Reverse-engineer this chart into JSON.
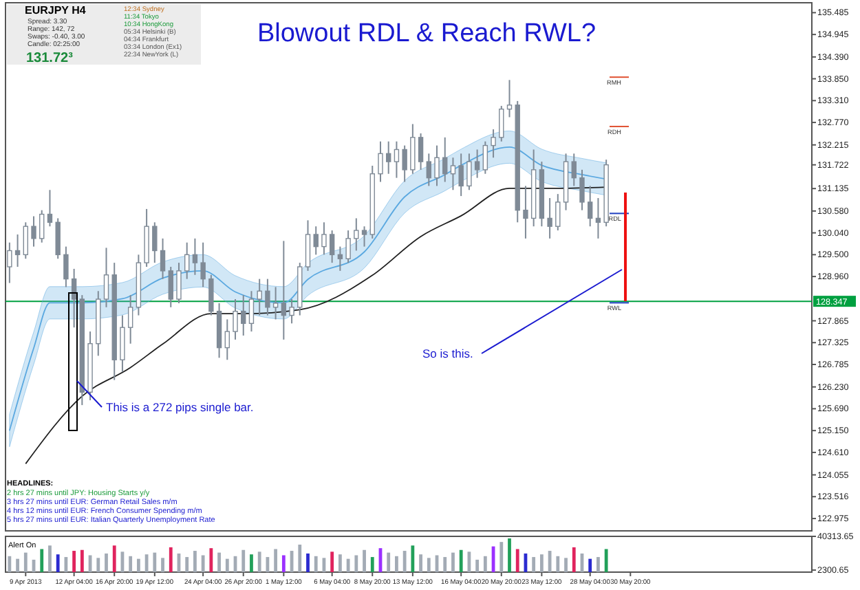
{
  "chart_data": [
    {
      "type": "candlestick",
      "title": "Blowout RDL & Reach RWL?",
      "categories": [
        null,
        null,
        null,
        null,
        null,
        null,
        null,
        null,
        null,
        null,
        null,
        null,
        null,
        null,
        null,
        null,
        null,
        null,
        null,
        null,
        null,
        null,
        null,
        null,
        null,
        null,
        null,
        null,
        null,
        null,
        null,
        null,
        null,
        null,
        null,
        null,
        null,
        null,
        null,
        null,
        null,
        null,
        null,
        null,
        null,
        null,
        null,
        null,
        null,
        null,
        null,
        null,
        null,
        null,
        null,
        null,
        null,
        null,
        null,
        null,
        null,
        null,
        null,
        null,
        null,
        null,
        null,
        null,
        null,
        null,
        null,
        null,
        null,
        null,
        null,
        null,
        null,
        null,
        null,
        null,
        null,
        null,
        null,
        null,
        null,
        null,
        null,
        null,
        null,
        null,
        null,
        null,
        null,
        null,
        null,
        null,
        null,
        null,
        null,
        null
      ],
      "ylim": [
        122.67,
        135.73
      ],
      "tick_labels": "y",
      "yticks": [
        122.975,
        {
          "value": 123.516,
          "label": "123.516"
        },
        {
          "value": 124.055,
          "label": "124.055"
        },
        {
          "value": 124.61,
          "label": "124.610"
        },
        {
          "value": 125.15,
          "label": "125.150"
        },
        {
          "value": 125.69,
          "label": "125.690"
        },
        {
          "value": 126.23,
          "label": "126.230"
        },
        126.785,
        127.325,
        127.865,
        {
          "value": 128.96,
          "label": "128.960"
        },
        {
          "value": 129.5,
          "label": "129.500"
        },
        {
          "value": 130.04,
          "label": "130.040"
        },
        {
          "value": 130.58,
          "label": "130.580"
        },
        131.135,
        131.722,
        132.215,
        {
          "value": 132.77,
          "label": "132.770"
        },
        {
          "value": 133.31,
          "label": "133.310"
        },
        {
          "value": 133.85,
          "label": "133.850"
        },
        {
          "value": 134.39,
          "label": "134.390"
        },
        134.945,
        135.485
      ],
      "ref_lines": [
        {
          "axis": "y",
          "value": 128.347,
          "label": "128.347",
          "color": "#00a040"
        },
        {
          "axis": "y",
          "value": 133.89,
          "label": "RMH",
          "color": "#e05030"
        },
        {
          "axis": "y",
          "value": 132.67,
          "label": "RDH",
          "color": "#e05030"
        },
        {
          "axis": "y",
          "value": 130.52,
          "label": "RDL",
          "color": "#2040c0"
        },
        {
          "axis": "y",
          "value": 128.31,
          "label": "RWL",
          "color": "#2040c0"
        }
      ],
      "series": [
        {
          "type": "line",
          "color": "#5aa8e0",
          "values": [
            125.15,
            null,
            null,
            127.19,
            null,
            128.31,
            null,
            null,
            null,
            128.31,
            null,
            null,
            null,
            null,
            128.41,
            null,
            null,
            null,
            null,
            128.92,
            null,
            null,
            null,
            null,
            129.1,
            null,
            null,
            null,
            128.58,
            null,
            null,
            null,
            null,
            null,
            128.31,
            null,
            null,
            128.89,
            null,
            null,
            null,
            null,
            null,
            null,
            129.57,
            null,
            null,
            null,
            null,
            130.93,
            null,
            null,
            null,
            null,
            131.48,
            null,
            131.71,
            null,
            null,
            null,
            null,
            null,
            132.16,
            null,
            null,
            null,
            131.71,
            null,
            null,
            null,
            null,
            131.48,
            null,
            null,
            131.37,
            null,
            null,
            null,
            null,
            null,
            null,
            null,
            null,
            null,
            null,
            null,
            null,
            null,
            null,
            null,
            null,
            null,
            null,
            null,
            null,
            null,
            null,
            null,
            null,
            null
          ],
          "lower": [
            124.75,
            null,
            null,
            126.79,
            null,
            127.91,
            null,
            null,
            null,
            127.91,
            null,
            null,
            null,
            null,
            128.01,
            null,
            null,
            null,
            null,
            128.52,
            null,
            null,
            null,
            null,
            128.7,
            null,
            null,
            null,
            128.18,
            null,
            null,
            null,
            null,
            null,
            127.91,
            null,
            null,
            128.49,
            null,
            null,
            null,
            null,
            null,
            null,
            129.17,
            null,
            null,
            null,
            null,
            130.53,
            null,
            null,
            null,
            null,
            131.08,
            null,
            131.31,
            null,
            null,
            null,
            null,
            null,
            131.76,
            null,
            null,
            null,
            131.31,
            null,
            null,
            null,
            null,
            131.08,
            null,
            null,
            130.97,
            null,
            null,
            null,
            null,
            null,
            null,
            null,
            null,
            null,
            null,
            null,
            null,
            null,
            null,
            null,
            null,
            null,
            null,
            null,
            null,
            null,
            null,
            null,
            null,
            null
          ],
          "upper": [
            125.55,
            null,
            null,
            127.59,
            null,
            128.71,
            null,
            null,
            null,
            128.71,
            null,
            null,
            null,
            null,
            128.81,
            null,
            null,
            null,
            null,
            129.32,
            null,
            null,
            null,
            null,
            129.5,
            null,
            null,
            null,
            128.98,
            null,
            null,
            null,
            null,
            null,
            128.71,
            null,
            null,
            129.29,
            null,
            null,
            null,
            null,
            null,
            null,
            129.97,
            null,
            null,
            null,
            null,
            131.33,
            null,
            null,
            null,
            null,
            131.88,
            null,
            132.11,
            null,
            null,
            null,
            null,
            null,
            132.56,
            null,
            null,
            null,
            132.11,
            null,
            null,
            null,
            null,
            131.88,
            null,
            null,
            131.77,
            null,
            null,
            null,
            null,
            null,
            null,
            null,
            null,
            null,
            null,
            null,
            null,
            null,
            null,
            null,
            null,
            null,
            null,
            null,
            null,
            null,
            null,
            null,
            null,
            null
          ]
        },
        {
          "type": "line",
          "color": "#202020",
          "values": [
            null,
            null,
            124.33,
            null,
            null,
            null,
            null,
            null,
            null,
            126.0,
            null,
            null,
            null,
            null,
            null,
            126.71,
            null,
            null,
            null,
            127.29,
            null,
            null,
            null,
            null,
            null,
            128.04,
            null,
            null,
            null,
            128.04,
            null,
            null,
            null,
            null,
            null,
            null,
            128.14,
            null,
            null,
            null,
            null,
            null,
            null,
            null,
            null,
            128.99,
            null,
            null,
            null,
            null,
            null,
            129.95,
            null,
            null,
            null,
            null,
            130.46,
            null,
            null,
            null,
            null,
            null,
            131.14,
            null,
            null,
            null,
            null,
            null,
            131.14,
            null,
            null,
            null,
            null,
            null,
            131.17,
            null,
            null,
            null,
            null,
            null,
            null,
            null,
            null,
            null,
            null,
            null,
            null,
            null,
            null,
            null,
            null,
            null,
            null,
            null,
            null,
            null,
            null,
            null,
            null,
            null
          ]
        },
        {
          "color": "#7f8a96",
          "ohlc": [
            [
              129.2,
              129.8,
              128.8,
              129.6
            ],
            [
              129.6,
              130.0,
              129.2,
              129.5
            ],
            [
              129.5,
              130.3,
              129.4,
              130.2
            ],
            [
              130.2,
              130.45,
              129.7,
              129.9
            ],
            [
              129.9,
              130.6,
              129.8,
              130.5
            ],
            [
              130.5,
              131.1,
              130.2,
              130.3
            ],
            [
              130.3,
              130.4,
              129.4,
              129.5
            ],
            [
              129.5,
              129.7,
              128.7,
              128.9
            ],
            [
              128.9,
              129.15,
              127.7,
              128.4
            ],
            [
              128.4,
              128.5,
              125.78,
              126.1
            ],
            [
              126.1,
              127.6,
              125.9,
              127.3
            ],
            [
              127.3,
              128.6,
              127.0,
              128.4
            ],
            [
              128.4,
              129.67,
              128.2,
              129.0
            ],
            [
              129.0,
              129.3,
              126.4,
              126.9
            ],
            [
              126.9,
              128.0,
              126.6,
              127.7
            ],
            [
              127.7,
              128.5,
              127.3,
              128.2
            ],
            [
              128.2,
              129.5,
              128.0,
              129.3
            ],
            [
              129.3,
              130.63,
              129.2,
              130.2
            ],
            [
              130.2,
              130.3,
              129.3,
              129.6
            ],
            [
              129.6,
              129.9,
              128.9,
              129.1
            ],
            [
              129.1,
              129.2,
              128.2,
              128.4
            ],
            [
              128.4,
              129.3,
              128.3,
              129.1
            ],
            [
              129.1,
              129.8,
              128.9,
              129.5
            ],
            [
              129.5,
              129.9,
              129.0,
              129.3
            ],
            [
              129.3,
              129.8,
              128.7,
              128.9
            ],
            [
              128.9,
              129.0,
              128.0,
              128.1
            ],
            [
              128.1,
              128.3,
              126.95,
              127.2
            ],
            [
              127.2,
              127.9,
              126.9,
              127.6
            ],
            [
              127.6,
              128.4,
              127.4,
              128.1
            ],
            [
              128.1,
              128.5,
              127.5,
              127.8
            ],
            [
              127.8,
              128.6,
              127.6,
              128.4
            ],
            [
              128.4,
              128.9,
              128.0,
              128.6
            ],
            [
              128.6,
              128.9,
              128.0,
              128.2
            ],
            [
              128.2,
              128.7,
              127.9,
              128.3
            ],
            [
              128.3,
              129.84,
              127.4,
              128.0
            ],
            [
              128.0,
              128.4,
              127.8,
              128.2
            ],
            [
              128.2,
              129.3,
              128.0,
              129.2
            ],
            [
              129.2,
              130.35,
              129.1,
              130.0
            ],
            [
              130.0,
              130.2,
              129.5,
              129.7
            ],
            [
              129.7,
              130.3,
              129.5,
              130.0
            ],
            [
              130.0,
              130.1,
              129.3,
              129.5
            ],
            [
              129.5,
              129.7,
              129.1,
              129.4
            ],
            [
              129.4,
              130.1,
              129.3,
              129.9
            ],
            [
              129.9,
              130.4,
              129.6,
              130.1
            ],
            [
              130.1,
              130.2,
              129.7,
              130.0
            ],
            [
              130.0,
              131.7,
              129.9,
              131.5
            ],
            [
              131.5,
              132.3,
              131.3,
              132.0
            ],
            [
              132.0,
              132.3,
              131.5,
              131.8
            ],
            [
              131.8,
              132.3,
              131.4,
              132.1
            ],
            [
              132.1,
              132.2,
              131.3,
              131.6
            ],
            [
              131.6,
              132.73,
              131.5,
              132.4
            ],
            [
              132.4,
              132.5,
              131.6,
              131.8
            ],
            [
              131.8,
              132.0,
              131.2,
              131.4
            ],
            [
              131.4,
              132.2,
              131.2,
              131.9
            ],
            [
              131.9,
              132.4,
              131.3,
              131.5
            ],
            [
              131.5,
              131.9,
              131.1,
              131.7
            ],
            [
              131.7,
              132.0,
              130.95,
              131.2
            ],
            [
              131.2,
              132.0,
              131.1,
              131.8
            ],
            [
              131.8,
              132.1,
              131.4,
              131.6
            ],
            [
              131.6,
              132.3,
              131.5,
              132.2
            ],
            [
              132.2,
              132.6,
              131.9,
              132.4
            ],
            [
              132.4,
              133.18,
              132.3,
              133.1
            ],
            [
              133.1,
              133.82,
              132.9,
              133.2
            ],
            [
              133.2,
              133.3,
              130.3,
              130.6
            ],
            [
              130.6,
              131.2,
              129.9,
              130.4
            ],
            [
              130.4,
              132.1,
              130.2,
              131.6
            ],
            [
              131.6,
              131.8,
              130.2,
              130.4
            ],
            [
              130.4,
              130.9,
              129.9,
              130.2
            ],
            [
              130.2,
              131.0,
              130.1,
              130.8
            ],
            [
              130.8,
              132.0,
              130.6,
              131.8
            ],
            [
              131.8,
              132.0,
              131.2,
              131.4
            ],
            [
              131.4,
              131.6,
              130.6,
              130.8
            ],
            [
              130.8,
              131.2,
              130.2,
              130.4
            ],
            [
              130.4,
              130.9,
              129.9,
              130.3
            ],
            [
              130.3,
              131.85,
              130.2,
              131.722
            ],
            null,
            null,
            null,
            null,
            null,
            null,
            null,
            null,
            null,
            null,
            null,
            null,
            null,
            null,
            null,
            null,
            null,
            null,
            null,
            null,
            null,
            null,
            null,
            null,
            null
          ]
        }
      ],
      "annotations": [
        "EURJPY  H4",
        "Spread: 3.30",
        "Range: 142, 72",
        "Swaps: -0.40, 3.00",
        "Candle: 02:25:00",
        "131.72³",
        "12:34  Sydney",
        "11:34  Tokyo",
        "10:34  HongKong",
        "05:34  Helsinki (B)",
        "04:34  Frankfurt",
        "03:34  London (Ex1)",
        "22:34  NewYork (L)",
        "This is a 272 pips single bar.",
        "So is this.",
        "HEADLINES:",
        "2 hrs 27 mins until JPY: Housing Starts y/y",
        "3 hrs 27 mins until EUR: German Retail Sales m/m",
        "4 hrs 12 mins until EUR: French Consumer Spending m/m",
        "5 hrs 27 mins until EUR: Italian Quarterly Unemployment Rate"
      ]
    },
    {
      "type": "bar",
      "ylim": [
        0,
        40313.65
      ],
      "yticks": [
        2300.65,
        40313.65
      ],
      "categories": [
        null,
        null,
        "9 Apr 2013",
        null,
        null,
        null,
        null,
        null,
        "12 Apr 04:00",
        null,
        null,
        null,
        null,
        "16 Apr 20:00",
        null,
        null,
        null,
        null,
        "19 Apr 12:00",
        null,
        null,
        null,
        null,
        null,
        "24 Apr 04:00",
        null,
        null,
        null,
        null,
        "26 Apr 20:00",
        null,
        null,
        null,
        null,
        "1 May 12:00",
        null,
        null,
        null,
        null,
        null,
        "6 May 04:00",
        null,
        null,
        null,
        null,
        "8 May 20:00",
        null,
        null,
        null,
        null,
        "13 May 12:00",
        null,
        null,
        null,
        null,
        null,
        "16 May 04:00",
        null,
        null,
        null,
        null,
        "20 May 20:00",
        null,
        null,
        null,
        null,
        "23 May 12:00",
        null,
        null,
        null,
        null,
        null,
        "28 May 04:00",
        null,
        null,
        null,
        null,
        "30 May 20:00",
        null,
        null,
        null,
        null,
        null,
        null,
        null,
        null,
        null,
        null,
        null,
        null,
        null,
        null,
        null,
        null,
        null,
        null,
        null,
        null,
        null,
        null
      ],
      "values": [
        18000,
        15000,
        22000,
        14000,
        26000,
        30000,
        20000,
        17000,
        24000,
        25000,
        19000,
        16000,
        21000,
        30000,
        23000,
        18000,
        15000,
        20000,
        22000,
        16000,
        28000,
        21000,
        17000,
        24000,
        19000,
        27000,
        22000,
        15000,
        18000,
        25000,
        20000,
        23000,
        17000,
        26000,
        19000,
        24000,
        31000,
        21000,
        18000,
        16000,
        23000,
        20000,
        15000,
        19000,
        25000,
        17000,
        27000,
        22000,
        18000,
        24000,
        30000,
        20000,
        16000,
        19000,
        17000,
        22000,
        25000,
        23000,
        14000,
        18000,
        29000,
        34000,
        38000,
        26000,
        21000,
        17000,
        20000,
        24000,
        18000,
        16000,
        28000,
        21000,
        15000,
        17000,
        26000,
        null,
        null,
        null,
        null,
        null,
        null,
        null,
        null,
        null,
        null,
        null,
        null,
        null,
        null,
        null,
        null,
        null,
        null,
        null,
        null,
        null,
        null,
        null,
        null,
        null
      ],
      "colors": [
        "#a3abb5",
        "#a3abb5",
        "#a3abb5",
        "#a3abb5",
        "#22a05a",
        "#a3abb5",
        "#2b2bd0",
        "#a3abb5",
        "#e0245e",
        "#e0245e",
        "#a3abb5",
        "#a3abb5",
        "#a3abb5",
        "#e0245e",
        "#a3abb5",
        "#a3abb5",
        "#a3abb5",
        "#a3abb5",
        "#a3abb5",
        "#a3abb5",
        "#e0245e",
        "#a3abb5",
        "#a3abb5",
        "#a3abb5",
        "#a3abb5",
        "#e0245e",
        "#a3abb5",
        "#a3abb5",
        "#a3abb5",
        "#a3abb5",
        "#22a05a",
        "#a3abb5",
        "#a3abb5",
        "#a3abb5",
        "#9b30ff",
        "#a3abb5",
        "#a3abb5",
        "#2b2bd0",
        "#a3abb5",
        "#a3abb5",
        "#e0245e",
        "#a3abb5",
        "#a3abb5",
        "#a3abb5",
        "#a3abb5",
        "#22a05a",
        "#9b30ff",
        "#a3abb5",
        "#a3abb5",
        "#a3abb5",
        "#22a05a",
        "#a3abb5",
        "#a3abb5",
        "#a3abb5",
        "#a3abb5",
        "#a3abb5",
        "#22a05a",
        "#a3abb5",
        "#a3abb5",
        "#a3abb5",
        "#9b30ff",
        "#a3abb5",
        "#22a05a",
        "#e0245e",
        "#2b2bd0",
        "#a3abb5",
        "#a3abb5",
        "#a3abb5",
        "#a3abb5",
        "#a3abb5",
        "#e0245e",
        "#a3abb5",
        "#2b2bd0",
        "#a3abb5",
        "#22a05a",
        null,
        null,
        null,
        null,
        null,
        null,
        null,
        null,
        null,
        null,
        null,
        null,
        null,
        null,
        null,
        null,
        null,
        null,
        null,
        null,
        null,
        null,
        null,
        null,
        null
      ],
      "annotations": [
        "Alert On"
      ]
    }
  ]
}
